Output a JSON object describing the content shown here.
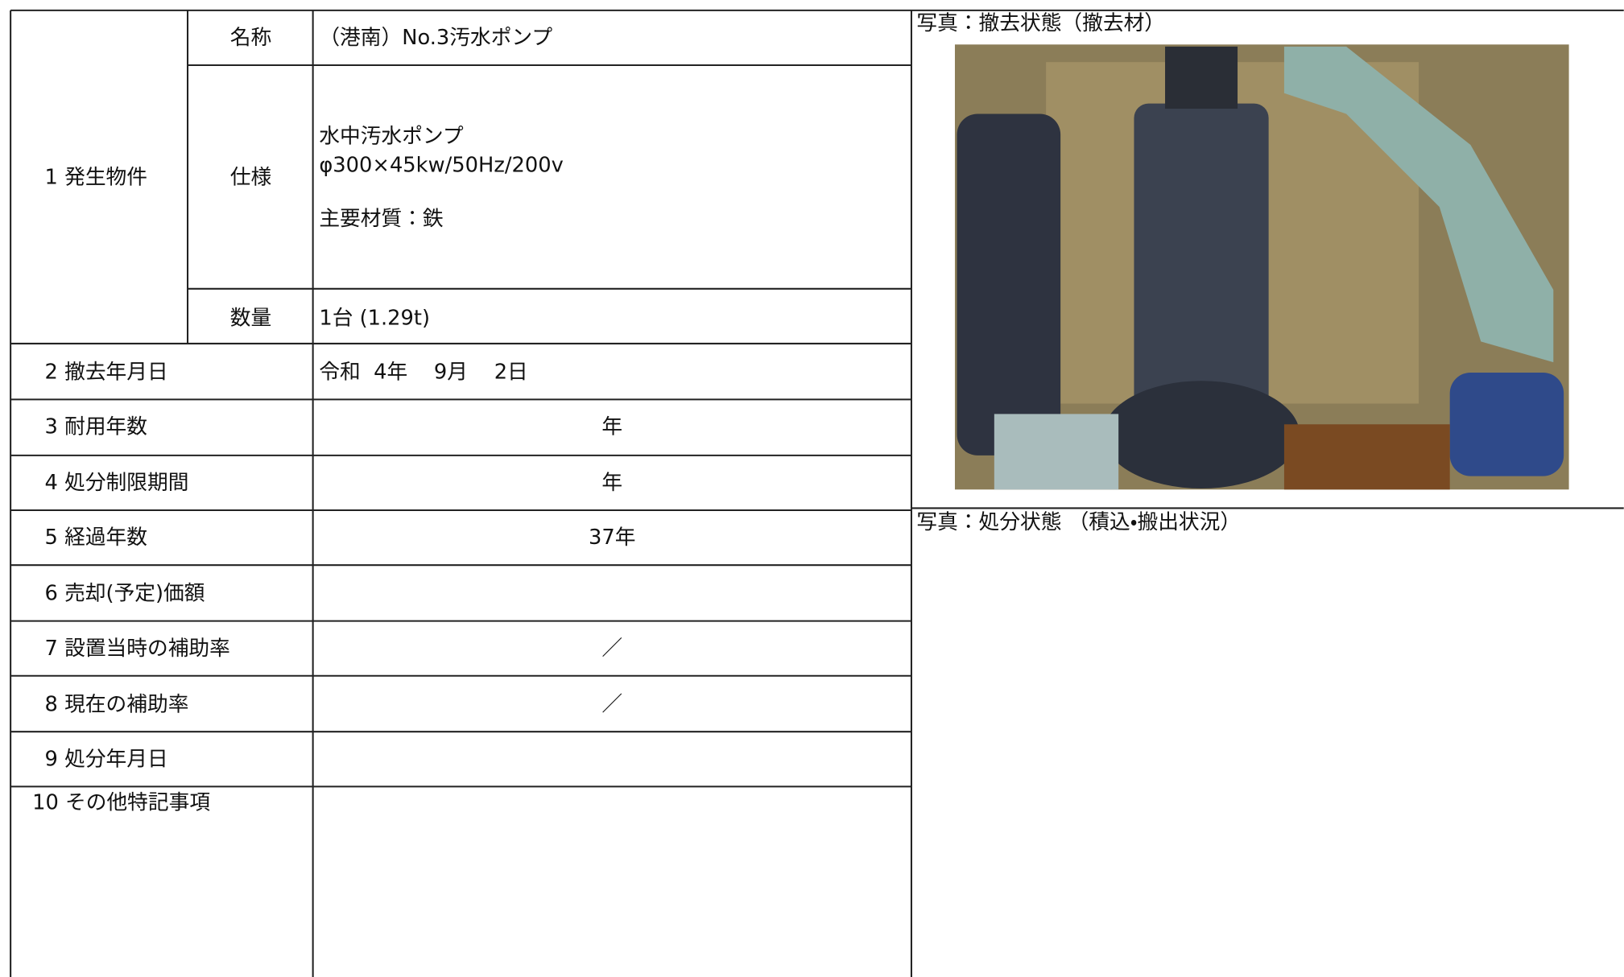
{
  "table": {
    "rows": [
      {
        "label": "1 発生物件",
        "fields": [
          {
            "label": "名称",
            "value": "（港南）No.3汚水ポンプ"
          },
          {
            "label": "仕様",
            "lines": [
              "水中汚水ポンプ",
              "φ300×45kw/50Hz/200v",
              "主要材質：鉄"
            ]
          },
          {
            "label": "数量",
            "value": "1台 (1.29t)"
          }
        ]
      },
      {
        "label": "2 撤去年月日",
        "value": "令和  4年    9月    2日"
      },
      {
        "label": "3 耐用年数",
        "value": "年"
      },
      {
        "label": "4 処分制限期間",
        "value": "年"
      },
      {
        "label": "5 経過年数",
        "value": "37年"
      },
      {
        "label": "6 売却(予定)価額"
      },
      {
        "label": "7 設置当時の補助率",
        "value": "／"
      },
      {
        "label": "8 現在の補助率",
        "value": "／"
      },
      {
        "label": "9 処分年月日"
      },
      {
        "label": "10 その他特記事項"
      }
    ]
  },
  "photos": [
    {
      "caption": "写真：撤去状態（撤去材）"
    },
    {
      "caption": "写真：処分状態 （積込・搬出状況）"
    }
  ]
}
